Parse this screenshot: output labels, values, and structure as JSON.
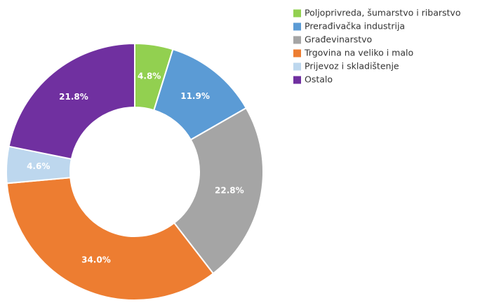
{
  "chart_data": {
    "type": "donut",
    "categories": [
      "Poljoprivreda, šumarstvo i ribarstvo",
      "Prerađivačka industrija",
      "Građevinarstvo",
      "Trgovina na veliko i malo",
      "Prijevoz i skladištenje",
      "Ostalo"
    ],
    "values": [
      4.8,
      11.9,
      22.8,
      34.0,
      4.6,
      21.8
    ],
    "value_labels": [
      "4.8%",
      "11.9%",
      "22.8%",
      "34.0%",
      "4.6%",
      "21.8%"
    ],
    "colors": [
      "#92d050",
      "#5b9bd5",
      "#a5a5a5",
      "#ed7d31",
      "#bdd7ee",
      "#7030a0"
    ],
    "legend": "top-right"
  }
}
